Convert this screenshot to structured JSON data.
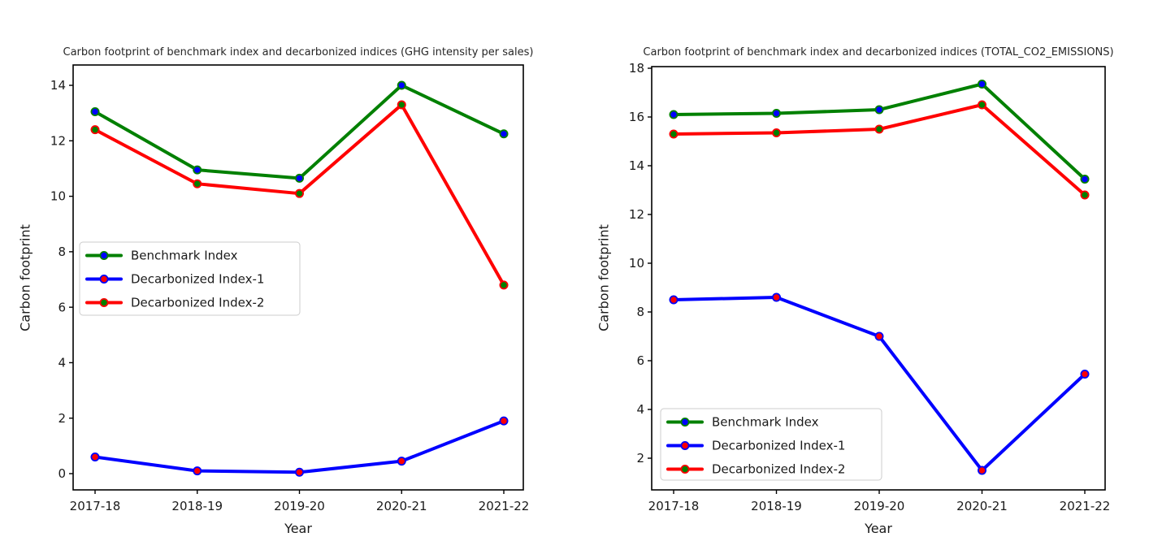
{
  "figure": {
    "background": "#ffffff",
    "text_color": "#1a1a1a",
    "spine_color": "#000000",
    "legend_border_color": "#cccccc",
    "legend_fill_color": "#ffffff"
  },
  "chart_data": [
    {
      "type": "line",
      "title": "Carbon footprint of benchmark index and decarbonized indices (GHG intensity per sales)",
      "xlabel": "Year",
      "ylabel": "Carbon footprint",
      "categories": [
        "2017-18",
        "2018-19",
        "2019-20",
        "2020-21",
        "2021-22"
      ],
      "yticks": [
        0,
        2,
        4,
        6,
        8,
        10,
        12,
        14
      ],
      "ylim": [
        -0.6,
        14.7
      ],
      "grid": false,
      "legend_position": "center left",
      "marker": "circle",
      "series": [
        {
          "name": "Benchmark Index",
          "line_color": "#008000",
          "marker_color": "#0000ff",
          "values": [
            13.05,
            10.95,
            10.65,
            14.0,
            12.25
          ]
        },
        {
          "name": "Decarbonized Index-1",
          "line_color": "#0000ff",
          "marker_color": "#ff0000",
          "values": [
            0.6,
            0.1,
            0.05,
            0.45,
            1.9
          ]
        },
        {
          "name": "Decarbonized Index-2",
          "line_color": "#ff0000",
          "marker_color": "#008000",
          "values": [
            12.4,
            10.45,
            10.1,
            13.3,
            6.8
          ]
        }
      ]
    },
    {
      "type": "line",
      "title": "Carbon footprint of benchmark index and decarbonized indices (TOTAL_CO2_EMISSIONS)",
      "xlabel": "Year",
      "ylabel": "Carbon footprint",
      "categories": [
        "2017-18",
        "2018-19",
        "2019-20",
        "2020-21",
        "2021-22"
      ],
      "yticks": [
        2,
        4,
        6,
        8,
        10,
        12,
        14,
        16,
        18
      ],
      "ylim": [
        0.7,
        18.1
      ],
      "grid": false,
      "legend_position": "lower left",
      "marker": "circle",
      "series": [
        {
          "name": "Benchmark Index",
          "line_color": "#008000",
          "marker_color": "#0000ff",
          "values": [
            16.1,
            16.15,
            16.3,
            17.35,
            13.45
          ]
        },
        {
          "name": "Decarbonized Index-1",
          "line_color": "#0000ff",
          "marker_color": "#ff0000",
          "values": [
            8.5,
            8.6,
            7.0,
            1.5,
            5.45
          ]
        },
        {
          "name": "Decarbonized Index-2",
          "line_color": "#ff0000",
          "marker_color": "#008000",
          "values": [
            15.3,
            15.35,
            15.5,
            16.5,
            12.8
          ]
        }
      ]
    }
  ]
}
